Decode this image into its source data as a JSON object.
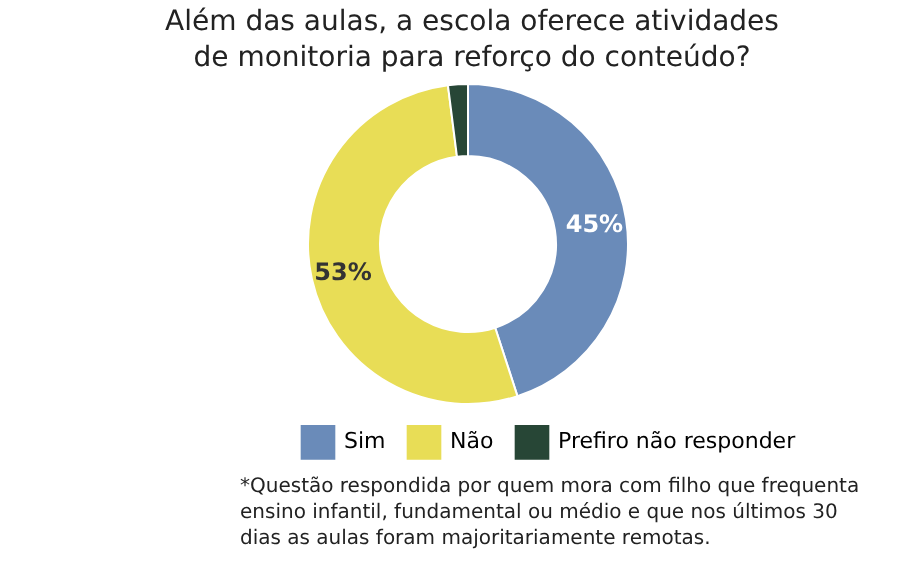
{
  "chart_data": {
    "type": "donut",
    "title": "Além das aulas, a escola oferece atividades de monitoria para reforço do conteúdo?",
    "categories": [
      "Sim",
      "Não",
      "Prefiro não responder"
    ],
    "values": [
      45,
      53,
      2
    ],
    "colors": [
      "#6a8bb9",
      "#e8dd56",
      "#274636"
    ],
    "value_labels": [
      "45%",
      "53%",
      null
    ],
    "legend": "bottom",
    "annotations": [
      "*Questão respondida por quem mora com filho que frequenta ensino infantil, fundamental ou médio e que nos últimos 30 dias as aulas foram majoritariamente remotas."
    ]
  }
}
